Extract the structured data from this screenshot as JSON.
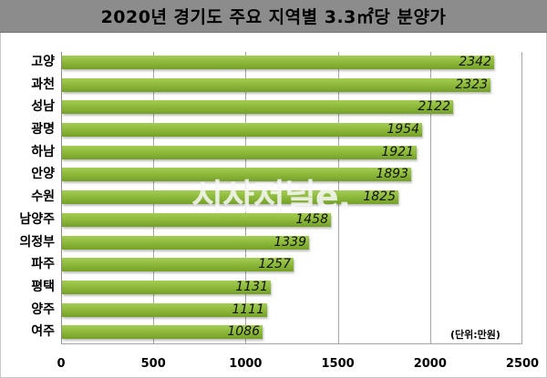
{
  "title": "2020년 경기도 주요 지역별 3.3㎡당 분양가",
  "unit_label": "(단위:만원)",
  "watermark": "시사저널e.",
  "colors": {
    "bar": "#8fbb3c",
    "title_bg": "#8c8c8c",
    "grid": "#a6a6a6"
  },
  "chart_data": {
    "type": "bar",
    "orientation": "horizontal",
    "title": "2020년 경기도 주요 지역별 3.3㎡당 분양가",
    "xlabel": "",
    "ylabel": "",
    "unit": "(단위:만원)",
    "categories": [
      "고양",
      "과천",
      "성남",
      "광명",
      "하남",
      "안양",
      "수원",
      "남양주",
      "의정부",
      "파주",
      "평택",
      "양주",
      "여주"
    ],
    "values": [
      2342,
      2323,
      2122,
      1954,
      1921,
      1893,
      1825,
      1458,
      1339,
      1257,
      1131,
      1111,
      1086
    ],
    "xlim": [
      0,
      2500
    ],
    "xticks": [
      "0",
      "500",
      "1000",
      "1500",
      "2000",
      "2500"
    ],
    "grid": true,
    "legend": "none"
  }
}
